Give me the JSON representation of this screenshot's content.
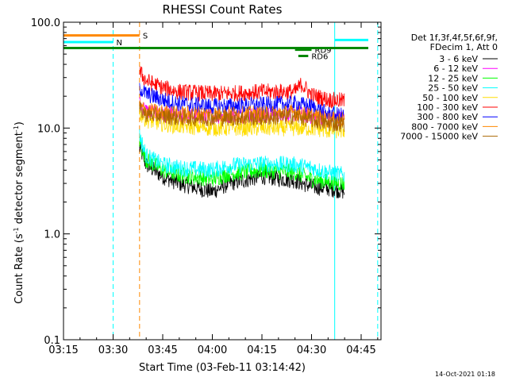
{
  "chart_data": {
    "type": "line",
    "title": "RHESSI Count Rates",
    "xlabel": "Start Time (03-Feb-11 03:14:42)",
    "ylabel": "Count Rate (s",
    "ylabel_sup1": "-1",
    "ylabel_mid": " detector segment",
    "ylabel_sup2": "-1",
    "ylabel_end": ")",
    "yscale": "log",
    "xlim": [
      "03:15",
      "04:51"
    ],
    "ylim": [
      0.1,
      100.0
    ],
    "x_ticks": [
      "03:15",
      "03:30",
      "03:45",
      "04:00",
      "04:15",
      "04:30",
      "04:45"
    ],
    "y_ticks": [
      {
        "value": 0.1,
        "label": "0.1"
      },
      {
        "value": 1.0,
        "label": "1.0"
      },
      {
        "value": 10.0,
        "label": "10.0"
      },
      {
        "value": 100.0,
        "label": "100.0"
      }
    ],
    "legend_header": [
      "Det 1f,3f,4f,5f,6f,9f,",
      "FDecim 1, Att 0"
    ],
    "series": [
      {
        "name": "3 - 6 keV",
        "color": "#000000",
        "x": [
          "03:38",
          "03:40",
          "03:45",
          "03:50",
          "04:00",
          "04:05",
          "04:15",
          "04:25",
          "04:30",
          "04:35",
          "04:38",
          "04:40"
        ],
        "y": [
          6.5,
          4.5,
          3.5,
          3.0,
          2.5,
          3.0,
          3.5,
          3.2,
          2.8,
          2.7,
          2.6,
          2.5
        ]
      },
      {
        "name": "6 - 12 keV",
        "color": "#ff00ff",
        "x": [
          "03:38",
          "03:40",
          "03:45",
          "03:50",
          "04:00",
          "04:15",
          "04:25",
          "04:30",
          "04:35",
          "04:40"
        ],
        "y": [
          17.0,
          14.5,
          13.5,
          13.0,
          13.0,
          13.2,
          13.5,
          13.0,
          12.5,
          12.5
        ]
      },
      {
        "name": "12 - 25 keV",
        "color": "#00ff00",
        "x": [
          "03:38",
          "03:40",
          "03:45",
          "03:50",
          "04:00",
          "04:05",
          "04:15",
          "04:25",
          "04:30",
          "04:35",
          "04:40"
        ],
        "y": [
          7.5,
          5.0,
          4.0,
          3.6,
          3.3,
          3.7,
          4.0,
          3.8,
          3.3,
          3.1,
          3.0
        ]
      },
      {
        "name": "25 - 50 keV",
        "color": "#00ffff",
        "x": [
          "03:38",
          "03:40",
          "03:45",
          "03:50",
          "04:00",
          "04:05",
          "04:15",
          "04:25",
          "04:30",
          "04:35",
          "04:40"
        ],
        "y": [
          8.5,
          5.5,
          4.5,
          4.2,
          4.0,
          4.4,
          4.6,
          4.5,
          4.2,
          3.8,
          3.6
        ]
      },
      {
        "name": "50 - 100 keV",
        "color": "#ffdd00",
        "x": [
          "03:38",
          "03:40",
          "03:45",
          "03:50",
          "04:00",
          "04:15",
          "04:25",
          "04:30",
          "04:35",
          "04:40"
        ],
        "y": [
          14.0,
          12.0,
          11.0,
          10.5,
          10.0,
          10.0,
          10.0,
          10.0,
          9.5,
          9.5
        ]
      },
      {
        "name": "100 - 300 keV",
        "color": "#ff0000",
        "x": [
          "03:38",
          "03:40",
          "03:45",
          "03:50",
          "04:00",
          "04:10",
          "04:15",
          "04:25",
          "04:27",
          "04:30",
          "04:35",
          "04:40"
        ],
        "y": [
          34.0,
          28.0,
          24.0,
          22.0,
          21.0,
          21.5,
          22.0,
          22.0,
          26.0,
          20.5,
          18.5,
          18.0
        ]
      },
      {
        "name": "300 - 800 keV",
        "color": "#0000ff",
        "x": [
          "03:38",
          "03:40",
          "03:45",
          "03:50",
          "04:00",
          "04:15",
          "04:25",
          "04:30",
          "04:35",
          "04:40"
        ],
        "y": [
          24.0,
          21.0,
          18.5,
          17.0,
          16.0,
          16.5,
          17.0,
          16.0,
          13.5,
          13.0
        ]
      },
      {
        "name": "800 - 7000 keV",
        "color": "#ff8800",
        "x": [
          "03:38",
          "03:40",
          "03:45",
          "03:50",
          "04:00",
          "04:15",
          "04:25",
          "04:30",
          "04:35",
          "04:40"
        ],
        "y": [
          16.0,
          14.5,
          14.0,
          13.5,
          13.5,
          13.5,
          14.0,
          13.0,
          12.0,
          12.0
        ]
      },
      {
        "name": "7000 - 15000 keV",
        "color": "#aa6600",
        "x": [
          "03:38",
          "03:40",
          "03:45",
          "03:50",
          "04:00",
          "04:15",
          "04:25",
          "04:30",
          "04:35",
          "04:40"
        ],
        "y": [
          15.0,
          13.5,
          13.0,
          12.5,
          12.5,
          12.5,
          13.0,
          12.0,
          11.0,
          11.0
        ]
      }
    ],
    "annotations": [
      {
        "label": "S",
        "color": "#ff8800",
        "start": "03:15",
        "end": "03:38",
        "y": 75.0
      },
      {
        "label": "N",
        "color": "#00ffff",
        "start": "03:15",
        "end": "03:30",
        "y": 65.0
      },
      {
        "label": "RD9",
        "color": "#008800",
        "start": "04:25",
        "end": "04:30",
        "y": 55.0
      },
      {
        "label": "RD6",
        "color": "#008800",
        "start": "04:26",
        "end": "04:29",
        "y": 48.0
      }
    ],
    "vertical_lines": [
      {
        "x": "03:30",
        "color": "#00ffff",
        "style": "dashed"
      },
      {
        "x": "03:38",
        "color": "#ff8800",
        "style": "dashed"
      },
      {
        "x": "04:37",
        "color": "#00ffff",
        "style": "solid"
      },
      {
        "x": "04:50",
        "color": "#00ffff",
        "style": "dashed"
      }
    ],
    "grid": false,
    "legend_position": "right",
    "footer": "14-Oct-2021 01:18"
  }
}
